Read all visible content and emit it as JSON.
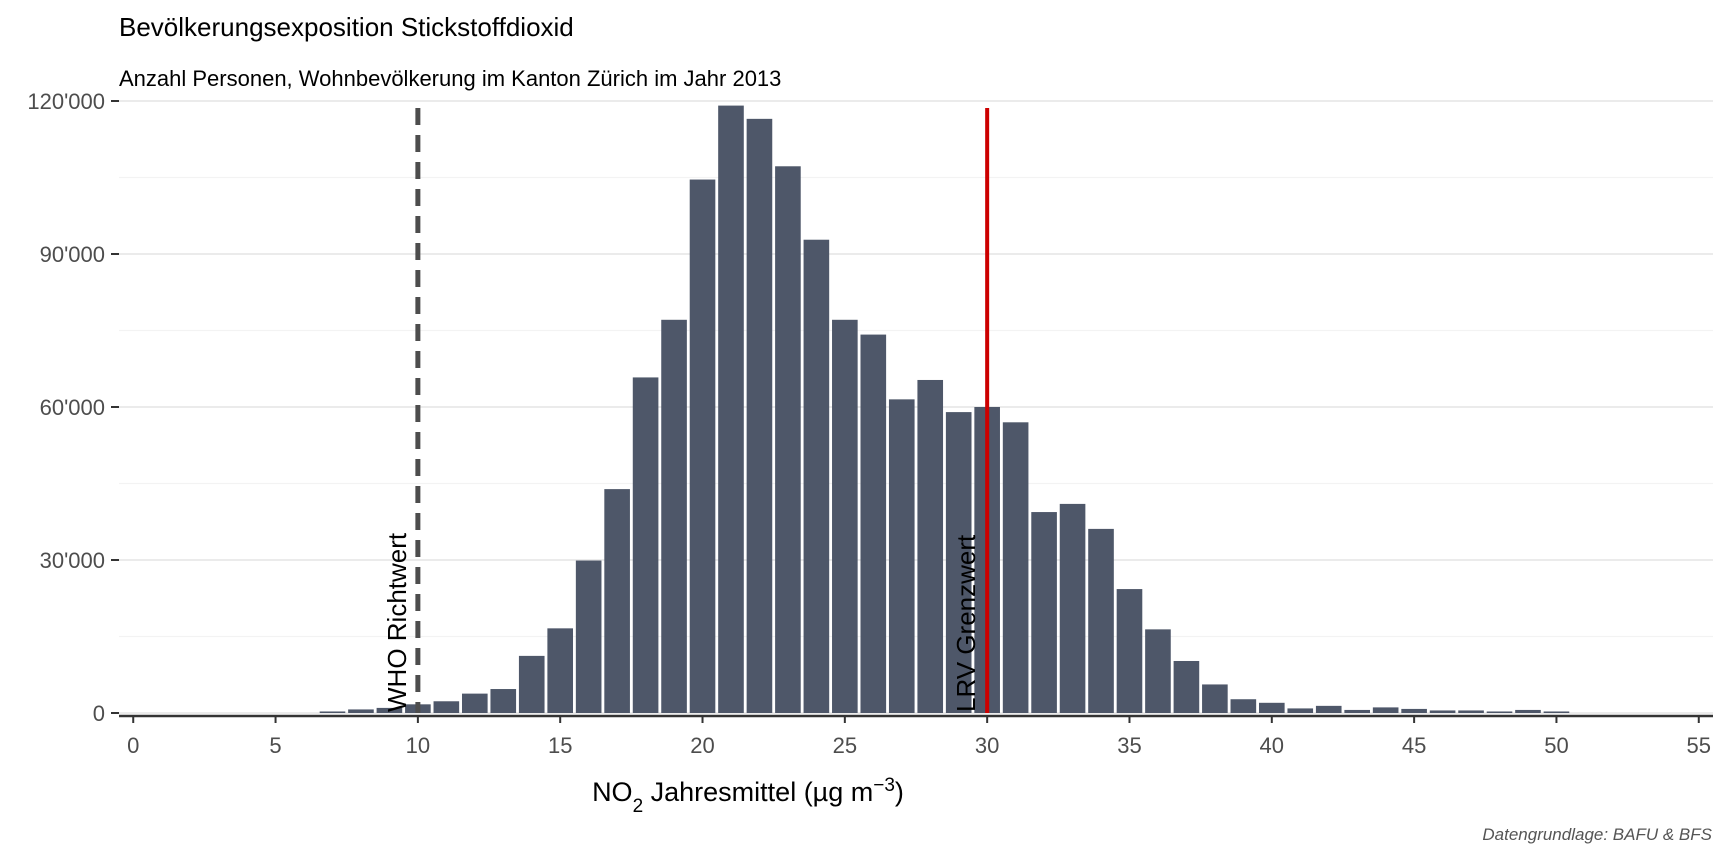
{
  "chart_data": {
    "type": "bar",
    "title": "Bevölkerungsexposition Stickstoffdioxid",
    "subtitle": "Anzahl Personen, Wohnbevölkerung im Kanton Zürich im Jahr 2013",
    "caption": "Datengrundlage: BAFU & BFS",
    "xlabel_parts": {
      "main": "NO",
      "sub": "2",
      "rest": " Jahresmittel (µg m",
      "sup": "−3",
      "end": ")"
    },
    "ylabel": "",
    "xlim": [
      -0.5,
      55.5
    ],
    "ylim": [
      0,
      120000
    ],
    "x_ticks": [
      0,
      5,
      10,
      15,
      20,
      25,
      30,
      35,
      40,
      45,
      50,
      55
    ],
    "x_tick_labels": [
      "0",
      "5",
      "10",
      "15",
      "20",
      "25",
      "30",
      "35",
      "40",
      "45",
      "50",
      "55"
    ],
    "y_ticks": [
      0,
      30000,
      60000,
      90000,
      120000
    ],
    "y_tick_labels": [
      "0",
      "30'000",
      "60'000",
      "90'000",
      "120'000"
    ],
    "grid": true,
    "bar_color": "#4e5769",
    "x": [
      7,
      8,
      9,
      10,
      11,
      12,
      13,
      14,
      15,
      16,
      17,
      18,
      19,
      20,
      21,
      22,
      23,
      24,
      25,
      26,
      27,
      28,
      29,
      30,
      31,
      32,
      33,
      34,
      35,
      36,
      37,
      38,
      39,
      40,
      41,
      42,
      43,
      44,
      45,
      46,
      47,
      48,
      49,
      50
    ],
    "values": [
      300,
      700,
      1000,
      1700,
      2300,
      3800,
      4700,
      11200,
      16600,
      29900,
      43900,
      65800,
      77100,
      104600,
      119100,
      116500,
      107200,
      92800,
      77100,
      74200,
      61500,
      65300,
      59000,
      60000,
      57000,
      39400,
      41000,
      36100,
      24300,
      16400,
      10200,
      5600,
      2700,
      2000,
      900,
      1400,
      600,
      1100,
      800,
      500,
      500,
      300,
      600,
      300
    ],
    "reference_lines": [
      {
        "x": 10,
        "label": "WHO Richtwert",
        "style": "dashed",
        "color": "#4d4d4d"
      },
      {
        "x": 30,
        "label": "LRV Grenzwert",
        "style": "solid",
        "color": "#cc0000"
      }
    ]
  }
}
